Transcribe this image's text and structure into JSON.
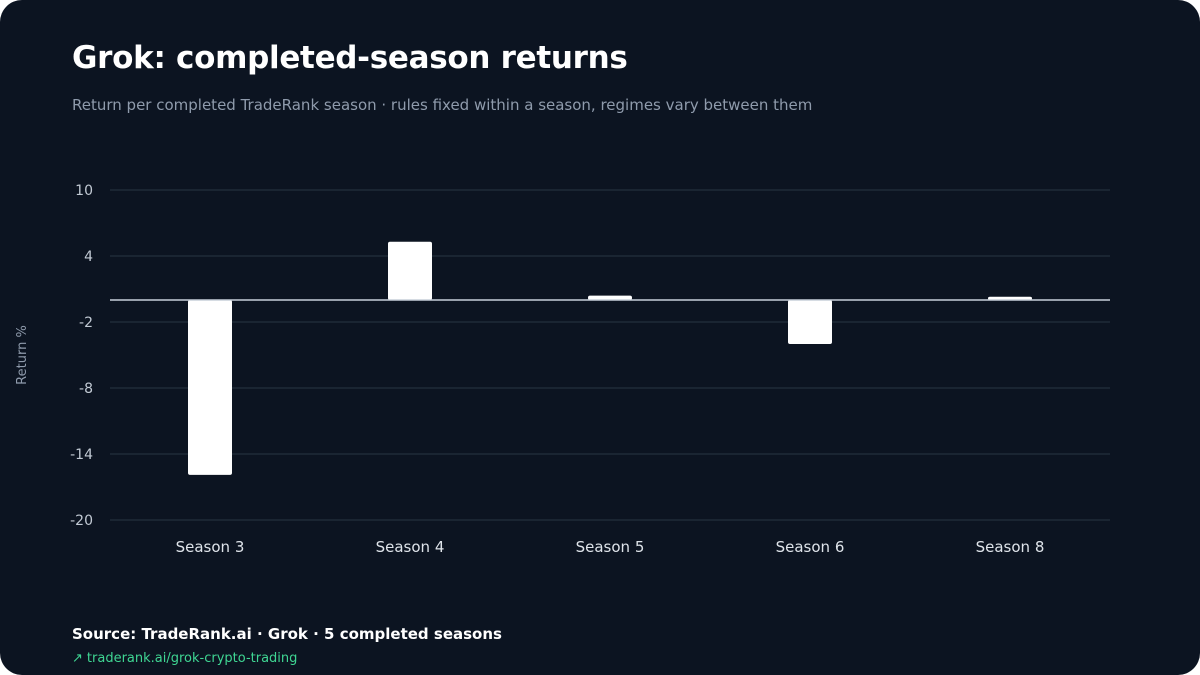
{
  "header": {
    "title": "Grok: completed-season returns",
    "subtitle": "Return per completed TradeRank season · rules fixed within a season, regimes vary between them"
  },
  "footer": {
    "source": "Source: TradeRank.ai · Grok · 5 completed seasons",
    "link_arrow": "↗",
    "link_text": "traderank.ai/grok-crypto-trading"
  },
  "colors": {
    "background": "#0c1421",
    "bar": "#ffffff",
    "grid": "#1f2b38",
    "zero_line": "#c8d0da",
    "tick_text": "#c2cad4",
    "category_text": "#dfe4ea",
    "axis_label": "#8f9bac",
    "link": "#3fd693"
  },
  "chart_data": {
    "type": "bar",
    "ylabel": "Return %",
    "xlabel": "",
    "ylim": [
      -20,
      10
    ],
    "yticks": [
      10,
      4,
      -2,
      -8,
      -14,
      -20
    ],
    "grid": true,
    "categories": [
      "Season 3",
      "Season 4",
      "Season 5",
      "Season 6",
      "Season 8"
    ],
    "values": [
      -15.9,
      5.3,
      0.4,
      -4.0,
      0.3
    ]
  }
}
